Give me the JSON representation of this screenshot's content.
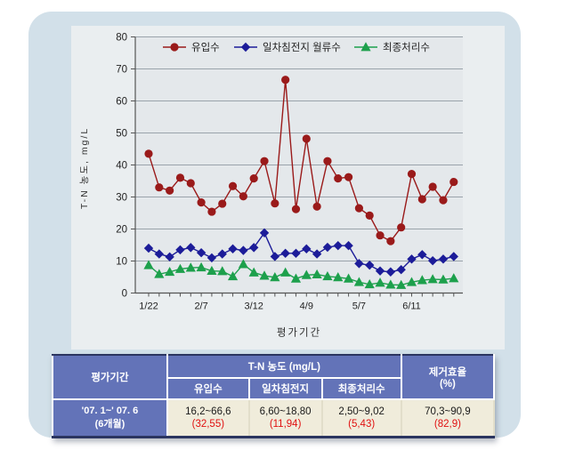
{
  "chart_data": {
    "type": "line",
    "title": "",
    "ylabel": "T-N 농도, mg/L",
    "xlabel": "평가기간",
    "ylim": [
      0,
      80
    ],
    "ytick_step": 10,
    "grid": "horizontal",
    "legend_position": "top-inside",
    "x_tick_labels": [
      "1/22",
      "2/7",
      "3/12",
      "4/9",
      "5/7",
      "6/11"
    ],
    "x_label_every": 5,
    "n_points": 30,
    "series": [
      {
        "name": "유입수",
        "color": "#9a1a1a",
        "marker": "circle",
        "values": [
          43.5,
          33.0,
          32.0,
          36.0,
          34.3,
          28.3,
          25.4,
          27.9,
          33.4,
          30.2,
          35.8,
          41.2,
          28.0,
          66.6,
          26.2,
          48.2,
          27.0,
          41.2,
          35.8,
          36.2,
          26.5,
          24.2,
          18.0,
          16.2,
          20.5,
          37.2,
          29.3,
          33.2,
          29.0,
          34.7
        ]
      },
      {
        "name": "일차침전지 월류수",
        "color": "#1c1c99",
        "marker": "diamond",
        "values": [
          14.0,
          12.2,
          11.3,
          13.5,
          14.2,
          12.6,
          11.0,
          12.2,
          13.8,
          13.3,
          14.2,
          18.8,
          11.4,
          12.4,
          12.4,
          13.8,
          12.2,
          14.3,
          14.8,
          14.8,
          9.2,
          8.7,
          6.9,
          6.6,
          7.3,
          10.6,
          12.0,
          10.1,
          10.6,
          11.4
        ]
      },
      {
        "name": "최종처리수",
        "color": "#1da04c",
        "marker": "triangle",
        "values": [
          8.7,
          5.9,
          6.6,
          7.5,
          7.9,
          8.0,
          6.9,
          6.8,
          5.2,
          9.0,
          6.4,
          5.4,
          4.9,
          6.4,
          4.5,
          5.6,
          5.8,
          5.2,
          4.9,
          4.5,
          3.4,
          2.7,
          3.2,
          2.6,
          2.5,
          3.4,
          4.0,
          4.3,
          4.2,
          4.6
        ]
      }
    ]
  },
  "table": {
    "header": {
      "period": "평가기간",
      "tn_group": "T-N 농도 (mg/L)",
      "sub": [
        "유입수",
        "일차침전지",
        "최종처리수"
      ],
      "removal_line1": "제거효율",
      "removal_line2": "(%)"
    },
    "row": {
      "period_line1": "'07. 1~' 07. 6",
      "period_line2": "(6개월)",
      "cells": [
        {
          "range": "16,2~66,6",
          "mean": "(32,55)"
        },
        {
          "range": "6,60~18,80",
          "mean": "(11,94)"
        },
        {
          "range": "2,50~9,02",
          "mean": "(5,43)"
        },
        {
          "range": "70,3~90,9",
          "mean": "(82,9)"
        }
      ]
    }
  },
  "colors": {
    "card_bg": "#d2e0e9",
    "panel_bg": "#eaeef0",
    "plot_bg": "#e4e8eb",
    "gridline": "#9aa3ab",
    "axis": "#555555",
    "header_bg": "#6373b8",
    "data_bg": "#f0ecdb",
    "mean_red": "#e01010",
    "dark_border": "#2b3560"
  }
}
